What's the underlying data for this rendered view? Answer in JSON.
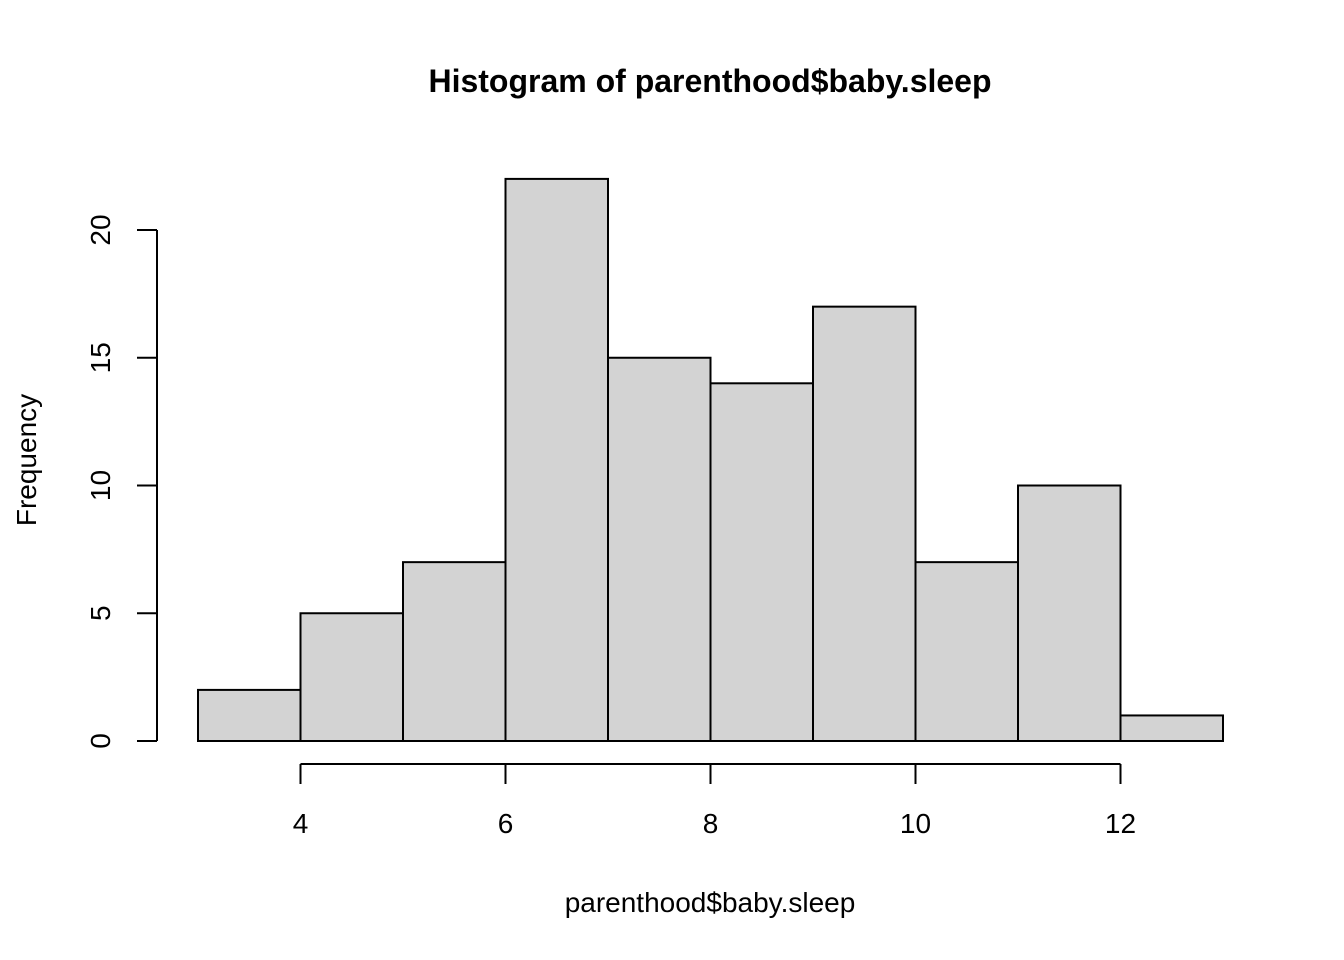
{
  "chart_data": {
    "type": "bar",
    "subtype": "histogram",
    "title": "Histogram of parenthood$baby.sleep",
    "xlabel": "parenthood$baby.sleep",
    "ylabel": "Frequency",
    "bins": [
      {
        "start": 3,
        "end": 4,
        "count": 2
      },
      {
        "start": 4,
        "end": 5,
        "count": 5
      },
      {
        "start": 5,
        "end": 6,
        "count": 7
      },
      {
        "start": 6,
        "end": 7,
        "count": 22
      },
      {
        "start": 7,
        "end": 8,
        "count": 15
      },
      {
        "start": 8,
        "end": 9,
        "count": 14
      },
      {
        "start": 9,
        "end": 10,
        "count": 17
      },
      {
        "start": 10,
        "end": 11,
        "count": 7
      },
      {
        "start": 11,
        "end": 12,
        "count": 10
      },
      {
        "start": 12,
        "end": 13,
        "count": 1
      }
    ],
    "x_ticks": [
      4,
      6,
      8,
      10,
      12
    ],
    "x_tick_labels": [
      "4",
      "6",
      "8",
      "10",
      "12"
    ],
    "y_ticks": [
      0,
      5,
      10,
      15,
      20
    ],
    "y_tick_labels": [
      "0",
      "5",
      "10",
      "15",
      "20"
    ],
    "xlim": [
      3,
      13
    ],
    "ylim": [
      0,
      22
    ],
    "bar_fill": "#d3d3d3",
    "bar_stroke": "#000000",
    "grid": false,
    "legend": "none"
  }
}
